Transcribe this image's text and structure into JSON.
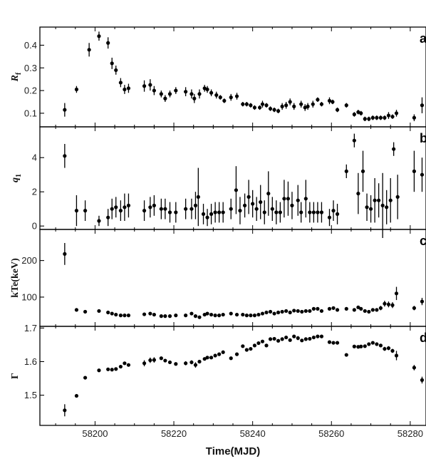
{
  "chart_data": [
    {
      "type": "scatter",
      "panel_label": "a",
      "ylabel": "R_f",
      "ylabel_main": "R",
      "ylabel_sub": "f",
      "ylim": [
        0.04,
        0.48
      ],
      "yticks": [
        0.1,
        0.2,
        0.3,
        0.4
      ],
      "ytick_labels": [
        "0.1",
        "0.2",
        "0.3",
        "0.4"
      ],
      "series": [
        {
          "x": [
            58192.3,
            58195.3,
            58198.5,
            58201.0,
            58203.3,
            58204.3,
            58205.3,
            58206.5,
            58207.5,
            58208.5,
            58212.5,
            58214.0,
            58215.0,
            58216.8,
            58217.8,
            58219.0,
            58220.5,
            58223.0,
            58224.5,
            58225.2,
            58226.5,
            58227.8,
            58228.5,
            58229.5,
            58230.8,
            58231.8,
            58232.8,
            58234.5,
            58236.0,
            58237.5,
            58238.5,
            58239.5,
            58240.5,
            58241.8,
            58242.5,
            58243.5,
            58244.5,
            58245.5,
            58246.5,
            58247.5,
            58248.5,
            58249.5,
            58250.5,
            58252.3,
            58253.3,
            58254.0,
            58255.3,
            58256.5,
            58257.5,
            58259.5,
            58260.3,
            58261.5,
            58263.8,
            58265.8,
            58266.8,
            58267.5,
            58268.5,
            58269.5,
            58270.5,
            58271.5,
            58272.5,
            58273.5,
            58274.5,
            58275.5,
            58276.5,
            58281.0,
            58283.0
          ],
          "y": [
            0.115,
            0.205,
            0.38,
            0.44,
            0.41,
            0.32,
            0.29,
            0.235,
            0.205,
            0.21,
            0.22,
            0.225,
            0.2,
            0.185,
            0.165,
            0.185,
            0.2,
            0.195,
            0.185,
            0.165,
            0.185,
            0.21,
            0.205,
            0.19,
            0.18,
            0.17,
            0.155,
            0.17,
            0.175,
            0.14,
            0.14,
            0.135,
            0.125,
            0.125,
            0.14,
            0.135,
            0.12,
            0.115,
            0.11,
            0.13,
            0.135,
            0.15,
            0.13,
            0.14,
            0.125,
            0.13,
            0.14,
            0.16,
            0.14,
            0.155,
            0.15,
            0.115,
            0.135,
            0.095,
            0.105,
            0.1,
            0.075,
            0.075,
            0.08,
            0.08,
            0.08,
            0.08,
            0.09,
            0.085,
            0.1,
            0.08,
            0.135
          ],
          "yerr": [
            0.03,
            0.015,
            0.03,
            0.02,
            0.025,
            0.025,
            0.02,
            0.02,
            0.02,
            0.02,
            0.025,
            0.025,
            0.02,
            0.015,
            0.015,
            0.015,
            0.015,
            0.02,
            0.02,
            0.02,
            0.02,
            0.015,
            0.015,
            0.015,
            0.015,
            0.01,
            0.01,
            0.015,
            0.015,
            0.01,
            0.01,
            0.01,
            0.01,
            0.01,
            0.015,
            0.01,
            0.01,
            0.01,
            0.01,
            0.015,
            0.015,
            0.015,
            0.015,
            0.015,
            0.015,
            0.015,
            0.015,
            0.01,
            0.01,
            0.015,
            0.01,
            0.01,
            0.01,
            0.01,
            0.01,
            0.01,
            0.01,
            0.01,
            0.01,
            0.01,
            0.01,
            0.01,
            0.015,
            0.01,
            0.015,
            0.015,
            0.035
          ]
        }
      ]
    },
    {
      "type": "scatter",
      "panel_label": "b",
      "ylabel": "q_1",
      "ylabel_main": "q",
      "ylabel_sub": "1",
      "ylim": [
        -0.2,
        5.8
      ],
      "yticks": [
        0,
        2,
        4
      ],
      "ytick_labels": [
        "0",
        "2",
        "4"
      ],
      "series": [
        {
          "x": [
            58192.3,
            58195.3,
            58197.5,
            58201.0,
            58203.3,
            58204.3,
            58205.3,
            58206.5,
            58207.5,
            58208.5,
            58212.5,
            58214.0,
            58215.0,
            58216.8,
            58217.8,
            58219.0,
            58220.5,
            58223.0,
            58224.5,
            58225.5,
            58226.2,
            58227.5,
            58228.5,
            58229.5,
            58230.5,
            58231.5,
            58232.5,
            58234.5,
            58235.8,
            58236.8,
            58238.0,
            58239.0,
            58240.0,
            58241.0,
            58242.0,
            58243.0,
            58244.0,
            58245.0,
            58246.0,
            58247.0,
            58248.0,
            58249.0,
            58250.0,
            58251.5,
            58252.3,
            58253.5,
            58254.5,
            58255.5,
            58256.5,
            58257.5,
            58259.5,
            58260.5,
            58261.5,
            58263.8,
            58265.8,
            58266.8,
            58268.0,
            58269.0,
            58270.0,
            58271.0,
            58272.0,
            58273.0,
            58274.0,
            58275.0,
            58275.8,
            58276.8,
            58281.0,
            58283.0
          ],
          "y": [
            4.1,
            0.9,
            0.9,
            0.3,
            0.5,
            1.0,
            1.1,
            0.9,
            1.1,
            1.2,
            0.9,
            1.1,
            1.2,
            1.0,
            1.0,
            0.8,
            0.8,
            1.0,
            1.0,
            1.2,
            1.7,
            0.7,
            0.5,
            0.7,
            0.8,
            0.8,
            0.8,
            1.0,
            2.1,
            0.9,
            1.2,
            1.7,
            1.3,
            1.0,
            1.4,
            0.8,
            1.9,
            1.0,
            0.8,
            0.8,
            1.6,
            1.6,
            1.2,
            1.5,
            0.8,
            1.6,
            0.8,
            0.8,
            0.8,
            0.8,
            0.5,
            0.9,
            0.7,
            3.2,
            5.0,
            1.9,
            3.2,
            1.1,
            1.0,
            1.5,
            1.5,
            1.2,
            1.1,
            1.5,
            4.5,
            1.7,
            3.2,
            3.0
          ],
          "yerr": [
            0.7,
            0.9,
            0.6,
            0.3,
            0.5,
            0.6,
            0.6,
            0.6,
            0.8,
            0.7,
            0.6,
            0.6,
            0.6,
            0.6,
            0.6,
            0.6,
            0.6,
            0.6,
            0.6,
            0.8,
            1.7,
            0.6,
            0.5,
            0.6,
            0.6,
            0.6,
            0.6,
            0.6,
            1.4,
            0.8,
            0.7,
            1.0,
            0.8,
            0.7,
            1.0,
            0.7,
            1.3,
            0.7,
            0.7,
            0.6,
            1.1,
            1.0,
            0.8,
            0.9,
            0.6,
            1.1,
            0.6,
            0.6,
            0.6,
            0.6,
            0.5,
            0.6,
            0.6,
            0.4,
            0.4,
            1.2,
            1.2,
            0.8,
            0.8,
            1.3,
            1.0,
            1.9,
            1.0,
            1.3,
            0.4,
            1.3,
            1.2,
            1.0
          ]
        }
      ]
    },
    {
      "type": "scatter",
      "panel_label": "c",
      "ylabel": "kTe(keV)",
      "ylim": [
        20,
        285
      ],
      "yticks": [
        100,
        200
      ],
      "ytick_labels": [
        "100",
        "200"
      ],
      "series": [
        {
          "x": [
            58192.3,
            58195.3,
            58197.5,
            58201.0,
            58203.3,
            58204.3,
            58205.3,
            58206.5,
            58207.5,
            58208.5,
            58212.5,
            58214.0,
            58215.0,
            58216.8,
            58217.8,
            58219.0,
            58220.5,
            58223.0,
            58224.5,
            58225.5,
            58226.5,
            58227.8,
            58228.5,
            58229.5,
            58230.5,
            58231.5,
            58232.5,
            58234.5,
            58236.0,
            58237.5,
            58238.5,
            58239.5,
            58240.5,
            58241.5,
            58242.5,
            58243.5,
            58244.5,
            58245.5,
            58246.5,
            58247.5,
            58248.5,
            58249.5,
            58250.5,
            58251.5,
            58252.5,
            58253.5,
            58254.5,
            58255.5,
            58256.5,
            58257.5,
            58259.5,
            58260.5,
            58261.5,
            58263.8,
            58265.8,
            58266.8,
            58267.5,
            58268.5,
            58269.5,
            58270.5,
            58271.5,
            58272.5,
            58273.5,
            58274.5,
            58275.5,
            58276.5,
            58281.0,
            58283.0
          ],
          "y": [
            218,
            65,
            60,
            62,
            58,
            55,
            52,
            50,
            50,
            50,
            53,
            55,
            52,
            48,
            48,
            48,
            50,
            50,
            55,
            48,
            45,
            52,
            55,
            52,
            50,
            50,
            52,
            55,
            52,
            52,
            50,
            50,
            50,
            52,
            55,
            58,
            60,
            55,
            58,
            60,
            62,
            58,
            63,
            62,
            60,
            62,
            62,
            68,
            68,
            62,
            68,
            70,
            65,
            68,
            65,
            72,
            68,
            62,
            60,
            65,
            65,
            70,
            82,
            80,
            78,
            110,
            70,
            88
          ],
          "yerr": [
            30,
            4,
            4,
            4,
            4,
            4,
            4,
            4,
            4,
            4,
            4,
            4,
            4,
            4,
            4,
            4,
            4,
            4,
            4,
            4,
            4,
            4,
            4,
            4,
            4,
            4,
            4,
            4,
            4,
            4,
            4,
            4,
            4,
            4,
            4,
            4,
            4,
            4,
            4,
            4,
            4,
            4,
            4,
            4,
            4,
            4,
            4,
            4,
            4,
            4,
            4,
            4,
            4,
            4,
            4,
            4,
            4,
            4,
            4,
            4,
            4,
            6,
            8,
            8,
            8,
            18,
            6,
            10
          ]
        }
      ]
    },
    {
      "type": "scatter",
      "panel_label": "d",
      "ylabel": "Γ",
      "ylim": [
        1.41,
        1.705
      ],
      "yticks": [
        1.5,
        1.6,
        1.7
      ],
      "ytick_labels": [
        "1.5",
        "1.6",
        "1.7"
      ],
      "series": [
        {
          "x": [
            58192.3,
            58195.3,
            58197.5,
            58201.0,
            58203.3,
            58204.3,
            58205.3,
            58206.5,
            58207.5,
            58208.5,
            58212.5,
            58214.0,
            58215.0,
            58216.8,
            58217.8,
            58219.0,
            58220.5,
            58223.0,
            58224.5,
            58225.5,
            58226.5,
            58227.8,
            58228.5,
            58229.5,
            58230.5,
            58231.5,
            58232.5,
            58234.5,
            58236.0,
            58237.5,
            58238.5,
            58239.5,
            58240.5,
            58241.5,
            58242.5,
            58243.5,
            58244.5,
            58245.5,
            58246.5,
            58247.5,
            58248.5,
            58249.5,
            58250.5,
            58251.5,
            58252.5,
            58253.5,
            58254.5,
            58255.5,
            58256.5,
            58257.5,
            58259.5,
            58260.5,
            58261.5,
            58263.8,
            58265.8,
            58266.8,
            58267.5,
            58268.5,
            58269.5,
            58270.5,
            58271.5,
            58272.5,
            58273.5,
            58274.5,
            58275.5,
            58276.5,
            58281.0,
            58283.0
          ],
          "y": [
            1.455,
            1.498,
            1.552,
            1.574,
            1.577,
            1.576,
            1.578,
            1.585,
            1.595,
            1.59,
            1.595,
            1.604,
            1.605,
            1.61,
            1.603,
            1.598,
            1.593,
            1.595,
            1.598,
            1.59,
            1.6,
            1.608,
            1.612,
            1.612,
            1.618,
            1.622,
            1.628,
            1.61,
            1.622,
            1.646,
            1.635,
            1.638,
            1.648,
            1.655,
            1.66,
            1.648,
            1.667,
            1.668,
            1.662,
            1.667,
            1.672,
            1.664,
            1.675,
            1.67,
            1.663,
            1.667,
            1.668,
            1.672,
            1.675,
            1.675,
            1.658,
            1.656,
            1.656,
            1.62,
            1.645,
            1.644,
            1.645,
            1.646,
            1.652,
            1.656,
            1.652,
            1.648,
            1.638,
            1.64,
            1.632,
            1.618,
            1.582,
            1.545
          ],
          "yerr": [
            0.018,
            0.004,
            0.004,
            0.004,
            0.004,
            0.004,
            0.004,
            0.004,
            0.004,
            0.004,
            0.009,
            0.008,
            0.008,
            0.004,
            0.004,
            0.004,
            0.004,
            0.006,
            0.006,
            0.008,
            0.004,
            0.004,
            0.004,
            0.004,
            0.004,
            0.004,
            0.004,
            0.004,
            0.004,
            0.004,
            0.004,
            0.004,
            0.004,
            0.004,
            0.004,
            0.004,
            0.004,
            0.004,
            0.004,
            0.004,
            0.004,
            0.004,
            0.004,
            0.006,
            0.004,
            0.004,
            0.004,
            0.004,
            0.004,
            0.004,
            0.004,
            0.004,
            0.004,
            0.004,
            0.004,
            0.004,
            0.004,
            0.004,
            0.004,
            0.004,
            0.004,
            0.004,
            0.006,
            0.006,
            0.006,
            0.014,
            0.008,
            0.01
          ]
        }
      ]
    }
  ],
  "xaxis": {
    "xlim": [
      58186,
      58284
    ],
    "ticks": [
      58200,
      58220,
      58240,
      58260,
      58280
    ],
    "tick_labels": [
      "58200",
      "58220",
      "58240",
      "58260",
      "58280"
    ],
    "label": "Time(MJD)"
  },
  "style": {
    "marker_color": "#000000",
    "axis_color": "#000000"
  }
}
